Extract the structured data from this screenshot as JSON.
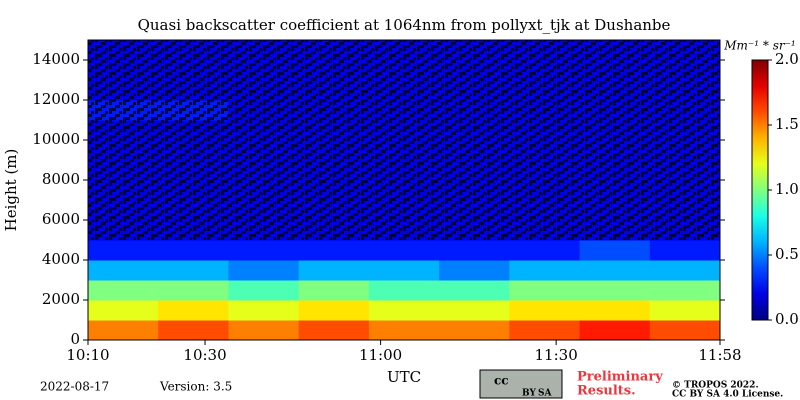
{
  "chart_data": {
    "type": "heatmap",
    "title": "Quasi backscatter coefficient at 1064nm from pollyxt_tjk at Dushanbe",
    "xlabel": "UTC",
    "ylabel": "Height (m)",
    "colorbar_label": "Mm⁻¹ * sr⁻¹",
    "colormap": "jet",
    "x_edges": [
      610,
      622,
      634,
      646,
      658,
      670,
      682,
      694,
      706,
      718
    ],
    "y_edges": [
      0,
      1000,
      2000,
      3000,
      4000,
      5000,
      6000,
      7000,
      8000,
      9000,
      10000,
      11000,
      12000,
      13000,
      14000,
      15000
    ],
    "z": [
      [
        1.5,
        1.6,
        1.5,
        1.6,
        1.5,
        1.5,
        1.6,
        1.7,
        1.6
      ],
      [
        1.2,
        1.3,
        1.2,
        1.3,
        1.2,
        1.2,
        1.3,
        1.3,
        1.2
      ],
      [
        1.0,
        1.0,
        0.9,
        1.0,
        0.9,
        0.9,
        1.0,
        1.0,
        1.0
      ],
      [
        0.6,
        0.6,
        0.5,
        0.6,
        0.6,
        0.5,
        0.6,
        0.6,
        0.6
      ],
      [
        0.3,
        0.3,
        0.3,
        0.3,
        0.3,
        0.3,
        0.3,
        0.4,
        0.3
      ],
      [
        0.2,
        0.2,
        0.2,
        0.2,
        0.2,
        0.2,
        0.2,
        0.2,
        0.2
      ],
      [
        0.2,
        0.2,
        0.2,
        0.2,
        0.2,
        0.2,
        0.2,
        0.2,
        0.2
      ],
      [
        0.2,
        0.2,
        0.2,
        0.2,
        0.2,
        0.2,
        0.2,
        0.2,
        0.2
      ],
      [
        0.2,
        0.2,
        0.2,
        0.2,
        0.2,
        0.2,
        0.2,
        0.2,
        0.2
      ],
      [
        0.2,
        0.2,
        0.2,
        0.2,
        0.2,
        0.2,
        0.2,
        0.2,
        0.2
      ],
      [
        0.2,
        0.2,
        0.2,
        0.2,
        0.2,
        0.2,
        0.2,
        0.2,
        0.2
      ],
      [
        0.3,
        0.3,
        0.2,
        0.2,
        0.2,
        0.2,
        0.2,
        0.2,
        0.2
      ],
      [
        0.2,
        0.2,
        0.2,
        0.2,
        0.2,
        0.2,
        0.2,
        0.2,
        0.2
      ],
      [
        0.2,
        0.2,
        0.2,
        0.2,
        0.2,
        0.2,
        0.2,
        0.2,
        0.2
      ],
      [
        0.2,
        0.2,
        0.2,
        0.2,
        0.2,
        0.2,
        0.2,
        0.2,
        0.2
      ]
    ],
    "xlim": [
      610,
      718
    ],
    "xticks": [
      {
        "value": 610,
        "label": "10:10"
      },
      {
        "value": 630,
        "label": "10:30"
      },
      {
        "value": 660,
        "label": "11:00"
      },
      {
        "value": 690,
        "label": "11:30"
      },
      {
        "value": 718,
        "label": "11:58"
      }
    ],
    "ylim": [
      0,
      15000
    ],
    "yticks": [
      0,
      2000,
      4000,
      6000,
      8000,
      10000,
      12000,
      14000
    ],
    "clim": [
      0,
      2
    ],
    "cticks": [
      {
        "value": 0,
        "label": "0.0"
      },
      {
        "value": 0.5,
        "label": "0.5"
      },
      {
        "value": 1,
        "label": "1.0"
      },
      {
        "value": 1.5,
        "label": "1.5"
      },
      {
        "value": 2,
        "label": "2.0"
      }
    ],
    "date": "2022-08-17",
    "version": "Version: 3.5",
    "notice": [
      "Preliminary",
      "Results."
    ],
    "license_badge": [
      "cc",
      "BY",
      "SA"
    ],
    "copyright": [
      "© TROPOS 2022.",
      "CC BY SA 4.0 License."
    ]
  }
}
